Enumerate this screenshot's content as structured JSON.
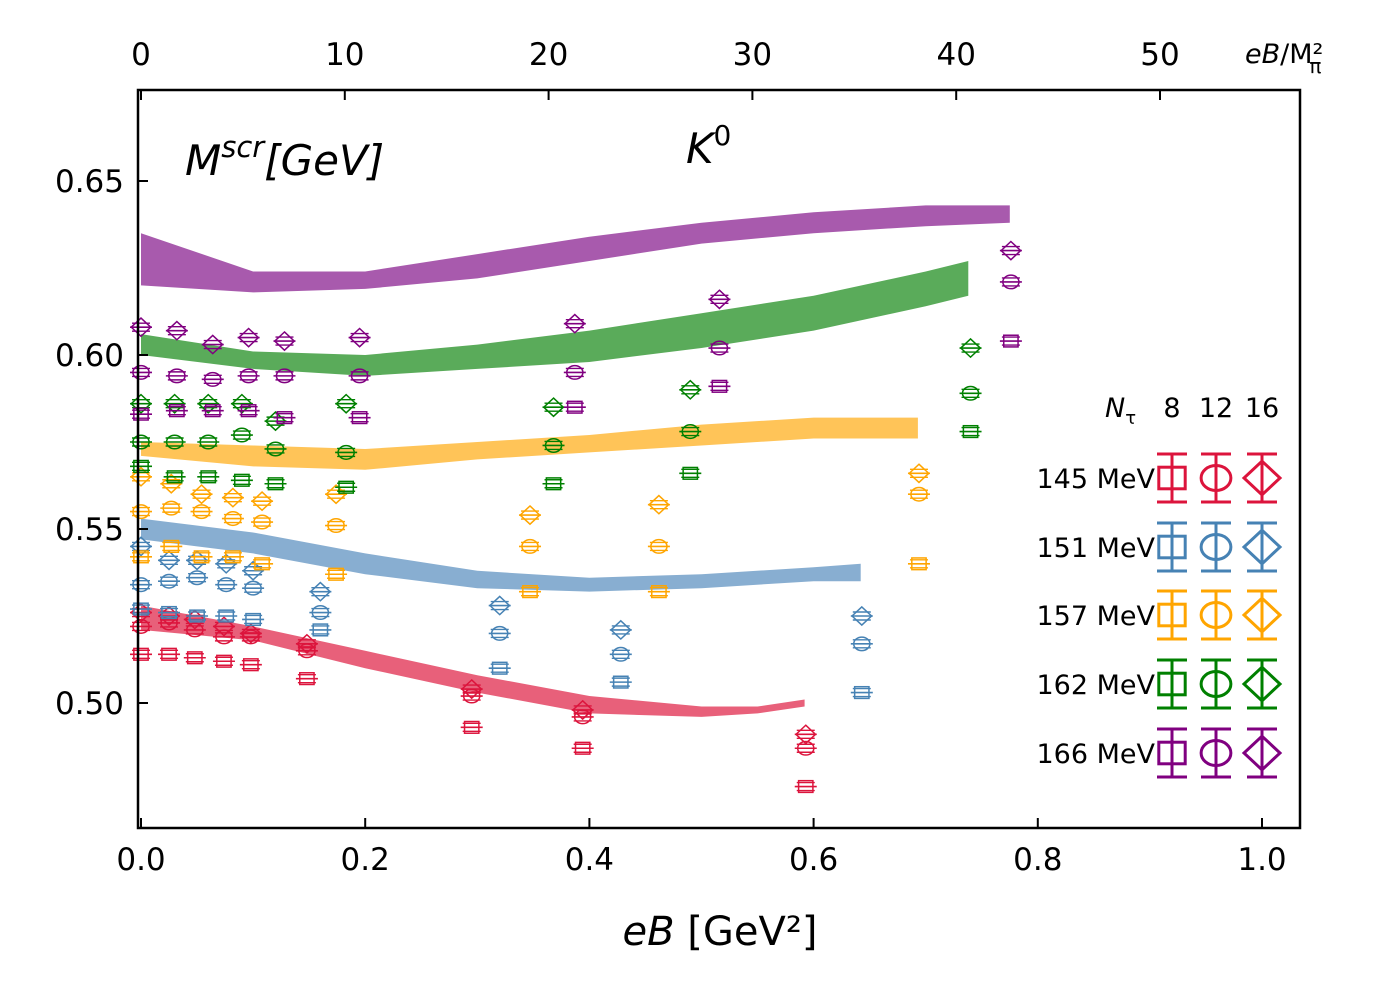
{
  "chart_data": {
    "type": "scatter",
    "title": "K^0",
    "ylabel_inplot": "M^scr[GeV]",
    "xlabel": "eB [GeV²]",
    "top_xlabel": "eB/M²_π",
    "xlim": [
      0.0,
      1.035
    ],
    "ylim": [
      0.465,
      0.678
    ],
    "top_xlim": [
      0,
      57.4
    ],
    "xticks": [
      0.0,
      0.2,
      0.4,
      0.6,
      0.8,
      1.0
    ],
    "xtick_labels": [
      "0.0",
      "0.2",
      "0.4",
      "0.6",
      "0.8",
      "1.0"
    ],
    "yticks": [
      0.5,
      0.55,
      0.6,
      0.65
    ],
    "ytick_labels": [
      "0.50",
      "0.55",
      "0.60",
      "0.65"
    ],
    "top_xticks": [
      0,
      10,
      20,
      30,
      40,
      50
    ],
    "top_xtick_labels": [
      "0",
      "10",
      "20",
      "30",
      "40",
      "50"
    ],
    "legend": {
      "header_symbol": "N",
      "header_sub": "τ",
      "columns": [
        "8",
        "12",
        "16"
      ],
      "rows": [
        "145 MeV",
        "151 MeV",
        "157 MeV",
        "162 MeV",
        "166 MeV"
      ],
      "position": "right"
    },
    "colors": {
      "145": "#dc143c",
      "151": "#4682b4",
      "157": "#ffa500",
      "162": "#008000",
      "166": "#800080"
    },
    "bands": [
      {
        "T": "145",
        "color": "#e8607a",
        "x": [
          0.0,
          0.1,
          0.2,
          0.3,
          0.4,
          0.5,
          0.55,
          0.592
        ],
        "lower": [
          0.521,
          0.518,
          0.51,
          0.503,
          0.497,
          0.496,
          0.497,
          0.499
        ],
        "upper": [
          0.528,
          0.522,
          0.515,
          0.508,
          0.502,
          0.499,
          0.499,
          0.501
        ]
      },
      {
        "T": "151",
        "color": "#88aed1",
        "x": [
          0.0,
          0.1,
          0.2,
          0.3,
          0.4,
          0.5,
          0.6,
          0.642
        ],
        "lower": [
          0.547,
          0.543,
          0.537,
          0.533,
          0.532,
          0.533,
          0.535,
          0.535
        ],
        "upper": [
          0.553,
          0.549,
          0.543,
          0.538,
          0.536,
          0.537,
          0.539,
          0.54
        ]
      },
      {
        "T": "157",
        "color": "#ffc458",
        "x": [
          0.0,
          0.1,
          0.2,
          0.3,
          0.4,
          0.5,
          0.6,
          0.7,
          0.693
        ],
        "lower": [
          0.571,
          0.568,
          0.567,
          0.57,
          0.572,
          0.574,
          0.576,
          0.576,
          0.576
        ],
        "upper": [
          0.575,
          0.574,
          0.573,
          0.575,
          0.577,
          0.58,
          0.582,
          0.582,
          0.582
        ]
      },
      {
        "T": "162",
        "color": "#5aab5a",
        "x": [
          0.0,
          0.1,
          0.2,
          0.3,
          0.4,
          0.5,
          0.6,
          0.7,
          0.738
        ],
        "lower": [
          0.6,
          0.596,
          0.594,
          0.596,
          0.598,
          0.602,
          0.607,
          0.614,
          0.617
        ],
        "upper": [
          0.606,
          0.601,
          0.6,
          0.603,
          0.607,
          0.612,
          0.617,
          0.624,
          0.627
        ]
      },
      {
        "T": "166",
        "color": "#a85aad",
        "x": [
          0.0,
          0.1,
          0.2,
          0.3,
          0.4,
          0.5,
          0.6,
          0.7,
          0.775
        ],
        "lower": [
          0.62,
          0.618,
          0.619,
          0.622,
          0.627,
          0.632,
          0.635,
          0.637,
          0.638
        ],
        "upper": [
          0.635,
          0.624,
          0.624,
          0.629,
          0.634,
          0.638,
          0.641,
          0.643,
          0.643
        ]
      }
    ],
    "series": [
      {
        "name": "145 MeV Nt=8",
        "T": "145",
        "marker": "square",
        "x": [
          0.0,
          0.025,
          0.048,
          0.074,
          0.098,
          0.148,
          0.295,
          0.394,
          0.593
        ],
        "y": [
          0.514,
          0.514,
          0.513,
          0.512,
          0.511,
          0.507,
          0.493,
          0.487,
          0.476
        ]
      },
      {
        "name": "145 MeV Nt=12",
        "T": "145",
        "marker": "circle",
        "x": [
          0.0,
          0.025,
          0.048,
          0.074,
          0.098,
          0.148,
          0.295,
          0.394,
          0.593
        ],
        "y": [
          0.522,
          0.523,
          0.521,
          0.519,
          0.519,
          0.515,
          0.502,
          0.496,
          0.487
        ]
      },
      {
        "name": "145 MeV Nt=16",
        "T": "145",
        "marker": "diamond",
        "x": [
          0.0,
          0.025,
          0.048,
          0.074,
          0.098,
          0.148,
          0.295,
          0.394,
          0.593
        ],
        "y": [
          0.526,
          0.525,
          0.524,
          0.522,
          0.52,
          0.517,
          0.504,
          0.498,
          0.491
        ]
      },
      {
        "name": "151 MeV Nt=8",
        "T": "151",
        "marker": "square",
        "x": [
          0.0,
          0.025,
          0.05,
          0.076,
          0.1,
          0.16,
          0.32,
          0.428,
          0.643
        ],
        "y": [
          0.527,
          0.526,
          0.525,
          0.525,
          0.524,
          0.521,
          0.51,
          0.506,
          0.503
        ]
      },
      {
        "name": "151 MeV Nt=12",
        "T": "151",
        "marker": "circle",
        "x": [
          0.0,
          0.025,
          0.05,
          0.076,
          0.1,
          0.16,
          0.32,
          0.428,
          0.643
        ],
        "y": [
          0.534,
          0.535,
          0.536,
          0.534,
          0.533,
          0.526,
          0.52,
          0.514,
          0.517
        ]
      },
      {
        "name": "151 MeV Nt=16",
        "T": "151",
        "marker": "diamond",
        "x": [
          0.0,
          0.025,
          0.05,
          0.076,
          0.1,
          0.16,
          0.32,
          0.428,
          0.643
        ],
        "y": [
          0.545,
          0.541,
          0.541,
          0.54,
          0.538,
          0.532,
          0.528,
          0.521,
          0.525
        ]
      },
      {
        "name": "157 MeV Nt=8",
        "T": "157",
        "marker": "square",
        "x": [
          0.0,
          0.027,
          0.054,
          0.082,
          0.108,
          0.174,
          0.347,
          0.462,
          0.694
        ],
        "y": [
          0.542,
          0.545,
          0.542,
          0.542,
          0.54,
          0.537,
          0.532,
          0.532,
          0.54
        ]
      },
      {
        "name": "157 MeV Nt=12",
        "T": "157",
        "marker": "circle",
        "x": [
          0.0,
          0.027,
          0.054,
          0.082,
          0.108,
          0.174,
          0.347,
          0.462,
          0.694
        ],
        "y": [
          0.555,
          0.556,
          0.555,
          0.553,
          0.552,
          0.551,
          0.545,
          0.545,
          0.56
        ]
      },
      {
        "name": "157 MeV Nt=16",
        "T": "157",
        "marker": "diamond",
        "x": [
          0.0,
          0.027,
          0.054,
          0.082,
          0.108,
          0.174,
          0.347,
          0.462,
          0.694
        ],
        "y": [
          0.565,
          0.563,
          0.56,
          0.559,
          0.558,
          0.56,
          0.554,
          0.557,
          0.566
        ]
      },
      {
        "name": "162 MeV Nt=8",
        "T": "162",
        "marker": "square",
        "x": [
          0.0,
          0.03,
          0.06,
          0.09,
          0.12,
          0.183,
          0.368,
          0.49,
          0.74
        ],
        "y": [
          0.568,
          0.565,
          0.565,
          0.564,
          0.563,
          0.562,
          0.563,
          0.566,
          0.578
        ]
      },
      {
        "name": "162 MeV Nt=12",
        "T": "162",
        "marker": "circle",
        "x": [
          0.0,
          0.03,
          0.06,
          0.09,
          0.12,
          0.183,
          0.368,
          0.49,
          0.74
        ],
        "y": [
          0.575,
          0.575,
          0.575,
          0.577,
          0.573,
          0.572,
          0.574,
          0.578,
          0.589
        ]
      },
      {
        "name": "162 MeV Nt=16",
        "T": "162",
        "marker": "diamond",
        "x": [
          0.0,
          0.03,
          0.06,
          0.09,
          0.12,
          0.183,
          0.368,
          0.49,
          0.74
        ],
        "y": [
          0.586,
          0.586,
          0.586,
          0.586,
          0.581,
          0.586,
          0.585,
          0.59,
          0.602
        ]
      },
      {
        "name": "166 MeV Nt=8",
        "T": "166",
        "marker": "square",
        "x": [
          0.0,
          0.032,
          0.064,
          0.096,
          0.128,
          0.195,
          0.387,
          0.516,
          0.776
        ],
        "y": [
          0.583,
          0.584,
          0.584,
          0.584,
          0.582,
          0.582,
          0.585,
          0.591,
          0.604
        ]
      },
      {
        "name": "166 MeV Nt=12",
        "T": "166",
        "marker": "circle",
        "x": [
          0.0,
          0.032,
          0.064,
          0.096,
          0.128,
          0.195,
          0.387,
          0.516,
          0.776
        ],
        "y": [
          0.595,
          0.594,
          0.593,
          0.594,
          0.594,
          0.594,
          0.595,
          0.602,
          0.621
        ]
      },
      {
        "name": "166 MeV Nt=16",
        "T": "166",
        "marker": "diamond",
        "x": [
          0.0,
          0.032,
          0.064,
          0.096,
          0.128,
          0.195,
          0.387,
          0.516,
          0.776
        ],
        "y": [
          0.608,
          0.607,
          0.603,
          0.605,
          0.604,
          0.605,
          0.609,
          0.616,
          0.63
        ]
      }
    ]
  }
}
